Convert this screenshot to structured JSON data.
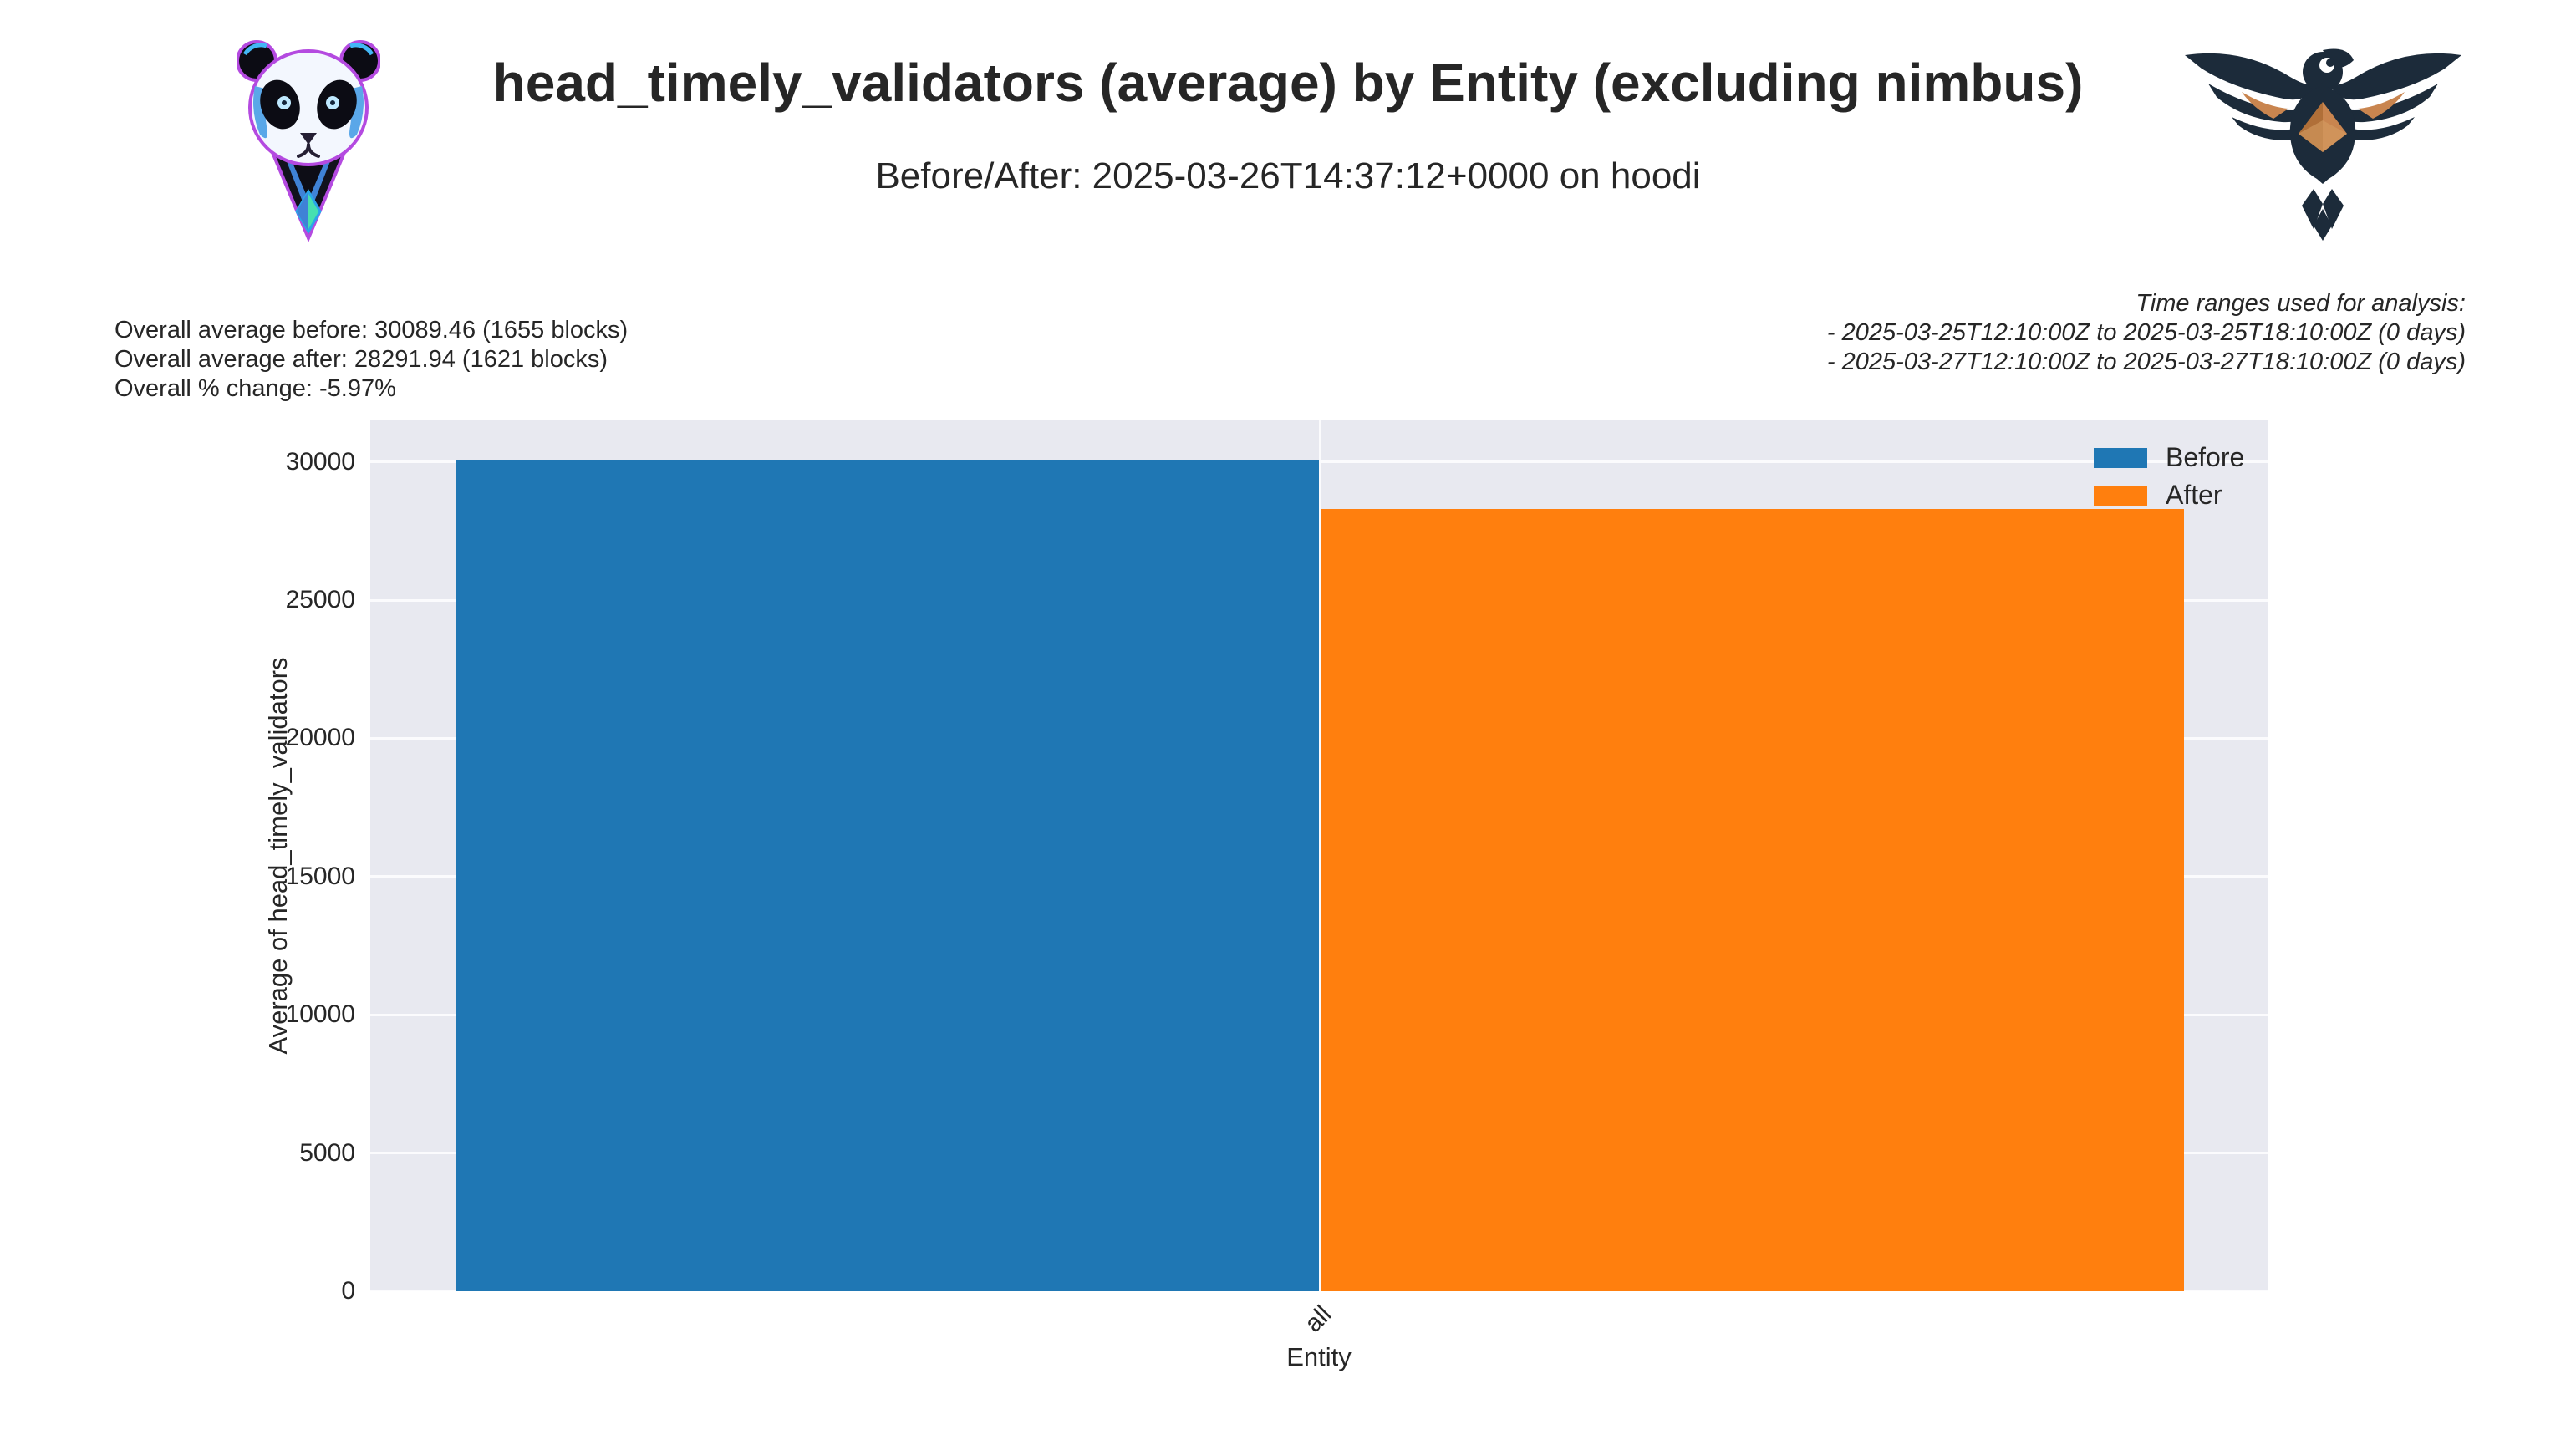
{
  "header": {
    "title": "head_timely_validators (average) by Entity (excluding nimbus)",
    "subtitle": "Before/After: 2025-03-26T14:37:12+0000 on hoodi"
  },
  "summary": {
    "before": "Overall average before: 30089.46 (1655 blocks)",
    "after": "Overall average after: 28291.94 (1621 blocks)",
    "pct_change": "Overall % change: -5.97%"
  },
  "time_ranges": {
    "heading": "Time ranges used for analysis:",
    "ranges": [
      "- 2025-03-25T12:10:00Z to 2025-03-25T18:10:00Z (0 days)",
      "- 2025-03-27T12:10:00Z to 2025-03-27T18:10:00Z (0 days)"
    ]
  },
  "icons": {
    "left_logo": "panda-ethereum-mascot",
    "right_logo": "eagle-ethereum-emblem"
  },
  "chart_data": {
    "type": "bar",
    "categories": [
      "all"
    ],
    "series": [
      {
        "name": "Before",
        "values": [
          30089.46
        ],
        "color": "#1f77b4"
      },
      {
        "name": "After",
        "values": [
          28291.94
        ],
        "color": "#ff7f0e"
      }
    ],
    "title": "head_timely_validators (average) by Entity (excluding nimbus)",
    "xlabel": "Entity",
    "ylabel": "Average of head_timely_validators",
    "ylim": [
      0,
      31500
    ],
    "yticks": [
      0,
      5000,
      10000,
      15000,
      20000,
      25000,
      30000
    ],
    "grid": true,
    "plot_background": "#e8e9f0",
    "grid_color": "#fbfbfd",
    "legend_position": "upper right",
    "x_tick_rotation": 45
  }
}
